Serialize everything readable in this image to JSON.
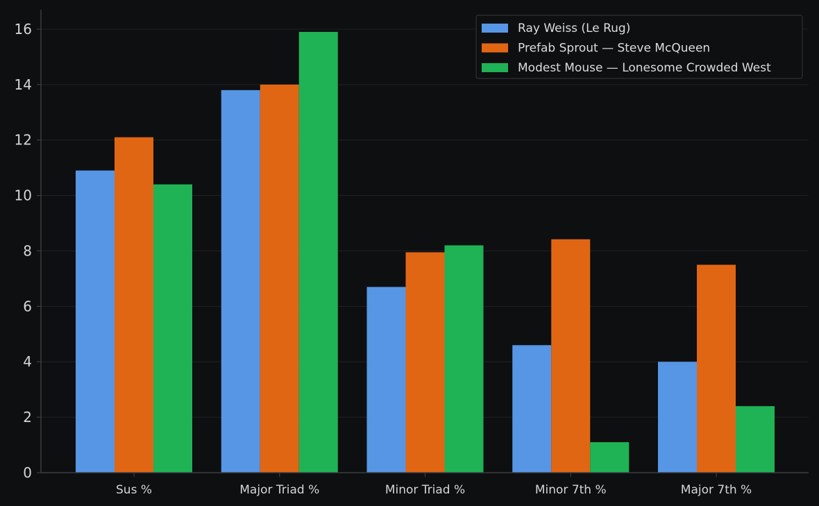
{
  "chart_data": {
    "type": "bar",
    "title": "",
    "xlabel": "",
    "ylabel": "",
    "categories": [
      "Sus %",
      "Major Triad %",
      "Minor Triad %",
      "Minor 7th %",
      "Major 7th %"
    ],
    "series": [
      {
        "name": "Ray Weiss (Le Rug)",
        "color": "#5796e5",
        "values": [
          10.9,
          13.8,
          6.7,
          4.6,
          4.0
        ]
      },
      {
        "name": "Prefab Sprout — Steve McQueen",
        "color": "#e16614",
        "values": [
          12.1,
          14.0,
          7.95,
          8.42,
          7.5
        ]
      },
      {
        "name": "Modest Mouse — Lonesome Crowded West",
        "color": "#1fb356",
        "values": [
          10.4,
          15.9,
          8.2,
          1.1,
          2.4
        ]
      }
    ],
    "ylim": [
      0,
      16.7
    ],
    "yticks": [
      0,
      2,
      4,
      6,
      8,
      10,
      12,
      14,
      16
    ],
    "grid": true,
    "legend_position": "top-right",
    "background": "#0e0f11",
    "grid_color": "#1e1f22",
    "axis_color": "#3c3e42",
    "text_color": "#d6d6d6"
  }
}
